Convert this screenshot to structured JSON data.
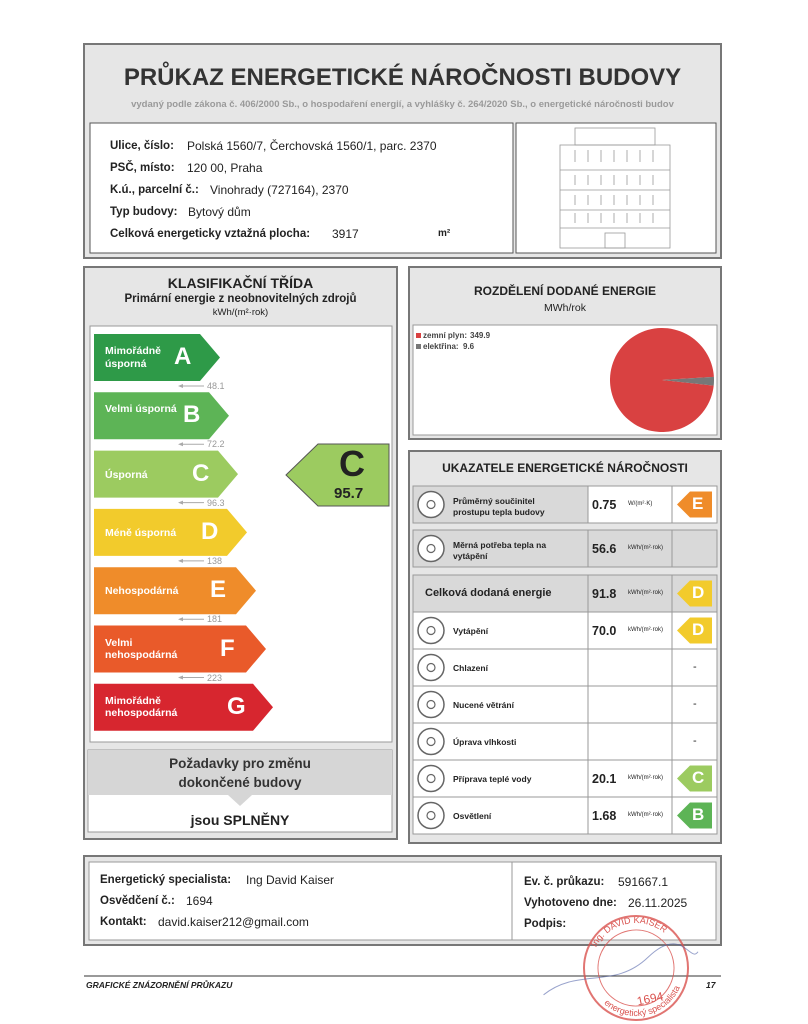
{
  "header": {
    "title": "PRŮKAZ ENERGETICKÉ NÁROČNOSTI BUDOVY",
    "subtitle": "vydaný podle zákona č. 406/2000 Sb., o hospodaření energií, a vyhlášky č. 264/2020 Sb., o energetické náročnosti budov"
  },
  "building": {
    "fields": [
      {
        "label": "Ulice, číslo:",
        "value": "Polská 1560/7, Čerchovská 1560/1, parc. 2370"
      },
      {
        "label": "PSČ, místo:",
        "value": "120 00, Praha"
      },
      {
        "label": "K.ú., parcelní č.:",
        "value": "Vinohrady (727164), 2370"
      },
      {
        "label": "Typ budovy:",
        "value": "Bytový dům"
      },
      {
        "label": "Celková energeticky vztažná plocha:",
        "value": "3917",
        "unit": "m²"
      }
    ]
  },
  "classification": {
    "title": "KLASIFIKAČNÍ TŘÍDA",
    "subtitle": "Primární energie z neobnovitelných zdrojů",
    "unit": "kWh/(m²·rok)",
    "classes": [
      {
        "letter": "A",
        "label": "Mimořádně úsporná",
        "limit": "48.1",
        "color": "#2e9a48"
      },
      {
        "letter": "B",
        "label": "Velmi úsporná",
        "limit": "72.2",
        "color": "#5db456"
      },
      {
        "letter": "C",
        "label": "Úsporná",
        "limit": "96.3",
        "color": "#9ccb60"
      },
      {
        "letter": "D",
        "label": "Méně úsporná",
        "limit": "138",
        "color": "#f2cb2c"
      },
      {
        "letter": "E",
        "label": "Nehospodárná",
        "limit": "181",
        "color": "#ef8c2a"
      },
      {
        "letter": "F",
        "label": "Velmi nehospodárná",
        "limit": "223",
        "color": "#e95a2a"
      },
      {
        "letter": "G",
        "label": "Mimořádně nehospodárná",
        "color": "#d7262f"
      }
    ],
    "rating": {
      "letter": "C",
      "value": "95.7"
    }
  },
  "requirements": {
    "title": "Požadavky pro změnu dokončené budovy",
    "result": "jsou SPLNĚNY"
  },
  "distribution": {
    "title": "ROZDĚLENÍ DODANÉ ENERGIE",
    "unit": "MWh/rok",
    "items": [
      {
        "name": "zemní plyn",
        "value": 349.9,
        "color": "#d94141"
      },
      {
        "name": "elektřina",
        "value": 9.6,
        "color": "#777777"
      }
    ]
  },
  "indicators": {
    "title": "UKAZATELE ENERGETICKÉ NÁROČNOSTI",
    "rows": [
      {
        "label": "Průměrný součinitel prostupu tepla budovy",
        "value": "0.75",
        "unit": "W/(m²·K)",
        "class": "E"
      },
      {
        "label": "Měrná potřeba tepla na vytápění",
        "value": "56.6",
        "unit": "kWh/(m²·rok)"
      },
      {
        "label": "Celková dodaná energie",
        "value": "91.8",
        "unit": "kWh/(m²·rok)",
        "class": "D"
      },
      {
        "label": "Vytápění",
        "value": "70.0",
        "unit": "kWh/(m²·rok)",
        "class": "D"
      },
      {
        "label": "Chlazení",
        "value": "-"
      },
      {
        "label": "Nucené větrání",
        "value": "-"
      },
      {
        "label": "Úprava vlhkosti",
        "value": "-"
      },
      {
        "label": "Příprava teplé vody",
        "value": "20.1",
        "unit": "kWh/(m²·rok)",
        "class": "C"
      },
      {
        "label": "Osvětlení",
        "value": "1.68",
        "unit": "kWh/(m²·rok)",
        "class": "B"
      }
    ]
  },
  "footer": {
    "left": [
      {
        "label": "Energetický specialista:",
        "value": "Ing David Kaiser"
      },
      {
        "label": "Osvědčení č.:",
        "value": "1694"
      },
      {
        "label": "Kontakt:",
        "value": "david.kaiser212@gmail.com"
      }
    ],
    "right": [
      {
        "label": "Ev. č. průkazu:",
        "value": "591667.1"
      },
      {
        "label": "Vyhotoveno dne:",
        "value": "26.11.2025"
      },
      {
        "label": "Podpis:"
      }
    ],
    "stamp": {
      "name": "Ing. DAVID KAISER",
      "number": "1694",
      "role": "energetický specialista"
    },
    "caption": "GRAFICKÉ ZNÁZORNĚNÍ PRŮKAZU",
    "page": "17"
  }
}
